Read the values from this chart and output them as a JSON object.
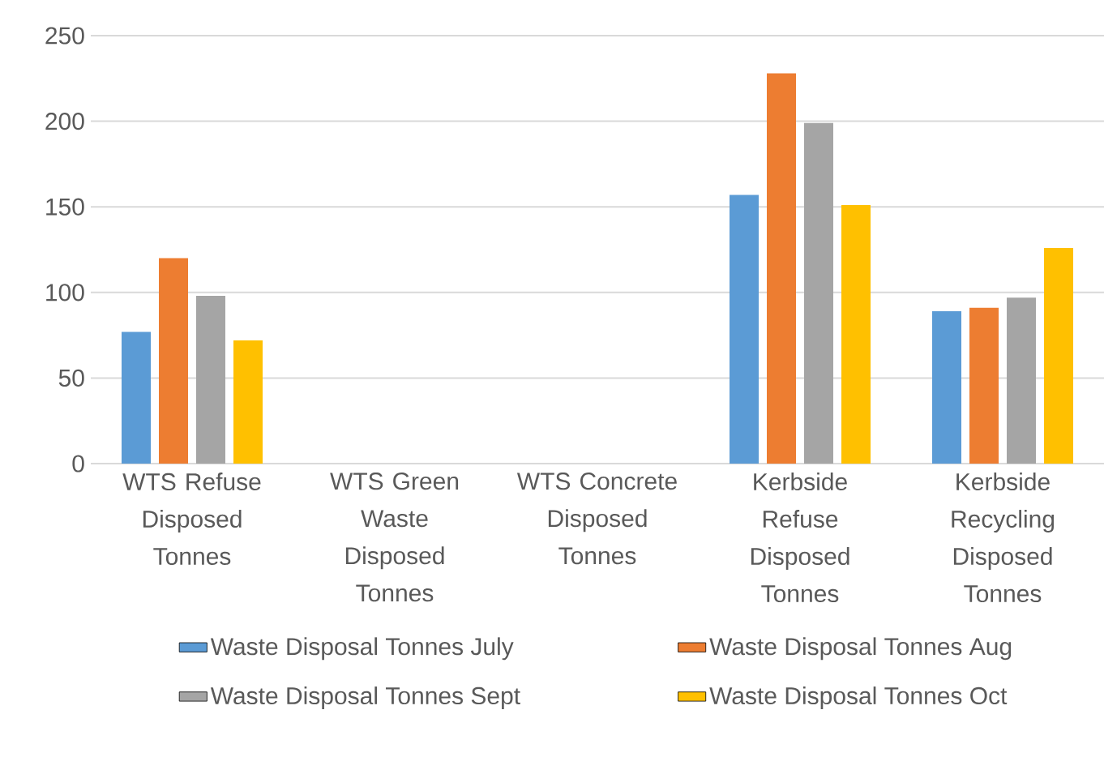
{
  "chart_data": {
    "type": "bar",
    "categories": [
      "WTS Refuse Disposed Tonnes",
      "WTS Green Waste Disposed Tonnes",
      "WTS Concrete Disposed Tonnes",
      "Kerbside Refuse Disposed Tonnes",
      "Kerbside Recycling Disposed Tonnes"
    ],
    "series": [
      {
        "name": "Waste Disposal Tonnes July",
        "color": "#5b9bd5",
        "values": [
          77,
          0,
          0,
          157,
          89
        ]
      },
      {
        "name": "Waste Disposal Tonnes Aug",
        "color": "#ed7d31",
        "values": [
          120,
          0,
          0,
          228,
          91
        ]
      },
      {
        "name": "Waste Disposal Tonnes Sept",
        "color": "#a5a5a5",
        "values": [
          98,
          0,
          0,
          199,
          97
        ]
      },
      {
        "name": "Waste Disposal Tonnes Oct",
        "color": "#ffc000",
        "values": [
          72,
          0,
          0,
          151,
          126
        ]
      }
    ],
    "ylim": [
      0,
      250
    ],
    "yticks": [
      0,
      50,
      100,
      150,
      200,
      250
    ],
    "grid": "y",
    "legend": "bottom"
  }
}
